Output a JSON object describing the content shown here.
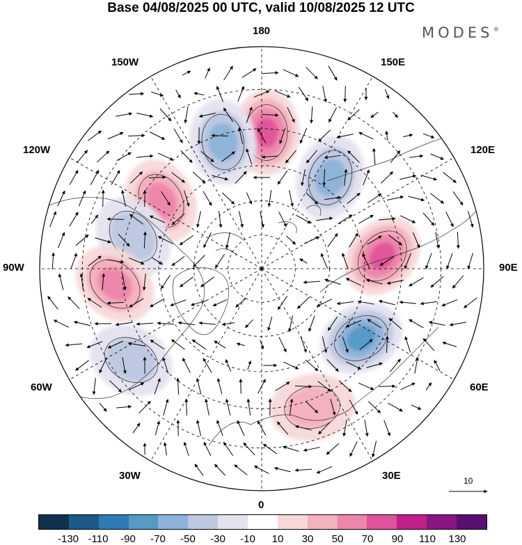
{
  "header": {
    "title": "Base 04/08/2025 00 UTC, valid 10/08/2025 12 UTC",
    "brand": "MODES",
    "brand_mark": "®"
  },
  "map": {
    "projection": "north-polar-stereographic",
    "longitude_labels": {
      "lon_180": "180",
      "lon_150W": "150W",
      "lon_150E": "150E",
      "lon_120W": "120W",
      "lon_120E": "120E",
      "lon_90W": "90W",
      "lon_90E": "90E",
      "lon_60W": "60W",
      "lon_60E": "60E",
      "lon_30W": "30W",
      "lon_30E": "30E",
      "lon_0": "0"
    },
    "anomaly_centers": [
      {
        "id": "pos-180",
        "sign": "positive",
        "lon": 178,
        "lat": 51,
        "peak": 75
      },
      {
        "id": "neg-165W",
        "sign": "negative",
        "lon": -163,
        "lat": 52,
        "peak": -65
      },
      {
        "id": "neg-150E",
        "sign": "negative",
        "lon": 143,
        "lat": 57,
        "peak": -60
      },
      {
        "id": "pos-125W",
        "sign": "positive",
        "lon": -124,
        "lat": 55,
        "peak": 55
      },
      {
        "id": "neg-100W",
        "sign": "negative",
        "lon": -104,
        "lat": 52,
        "peak": -40
      },
      {
        "id": "pos-85W",
        "sign": "positive",
        "lon": -84,
        "lat": 48,
        "peak": 60
      },
      {
        "id": "neg-55W",
        "sign": "negative",
        "lon": -55,
        "lat": 45,
        "peak": -45
      },
      {
        "id": "pos-95E",
        "sign": "positive",
        "lon": 96,
        "lat": 55,
        "peak": 70
      },
      {
        "id": "neg-55E",
        "sign": "negative",
        "lon": 55,
        "lat": 55,
        "peak": -75
      },
      {
        "id": "pos-25E",
        "sign": "positive",
        "lon": 20,
        "lat": 48,
        "peak": 40
      }
    ],
    "reference_vector_label": "10"
  },
  "colorbar": {
    "colors": [
      "#10324f",
      "#1c5a8a",
      "#2f7cb4",
      "#5599c6",
      "#8cb2d8",
      "#bdc8e0",
      "#e4e2ef",
      "#ffffff",
      "#f7d8d9",
      "#f3b0bd",
      "#ec86ab",
      "#e0529a",
      "#c31e8b",
      "#8a1584",
      "#5b0e72"
    ],
    "ticks": [
      "-130",
      "-110",
      "-90",
      "-70",
      "-50",
      "-30",
      "-10",
      "10",
      "30",
      "50",
      "70",
      "90",
      "110",
      "130"
    ]
  }
}
